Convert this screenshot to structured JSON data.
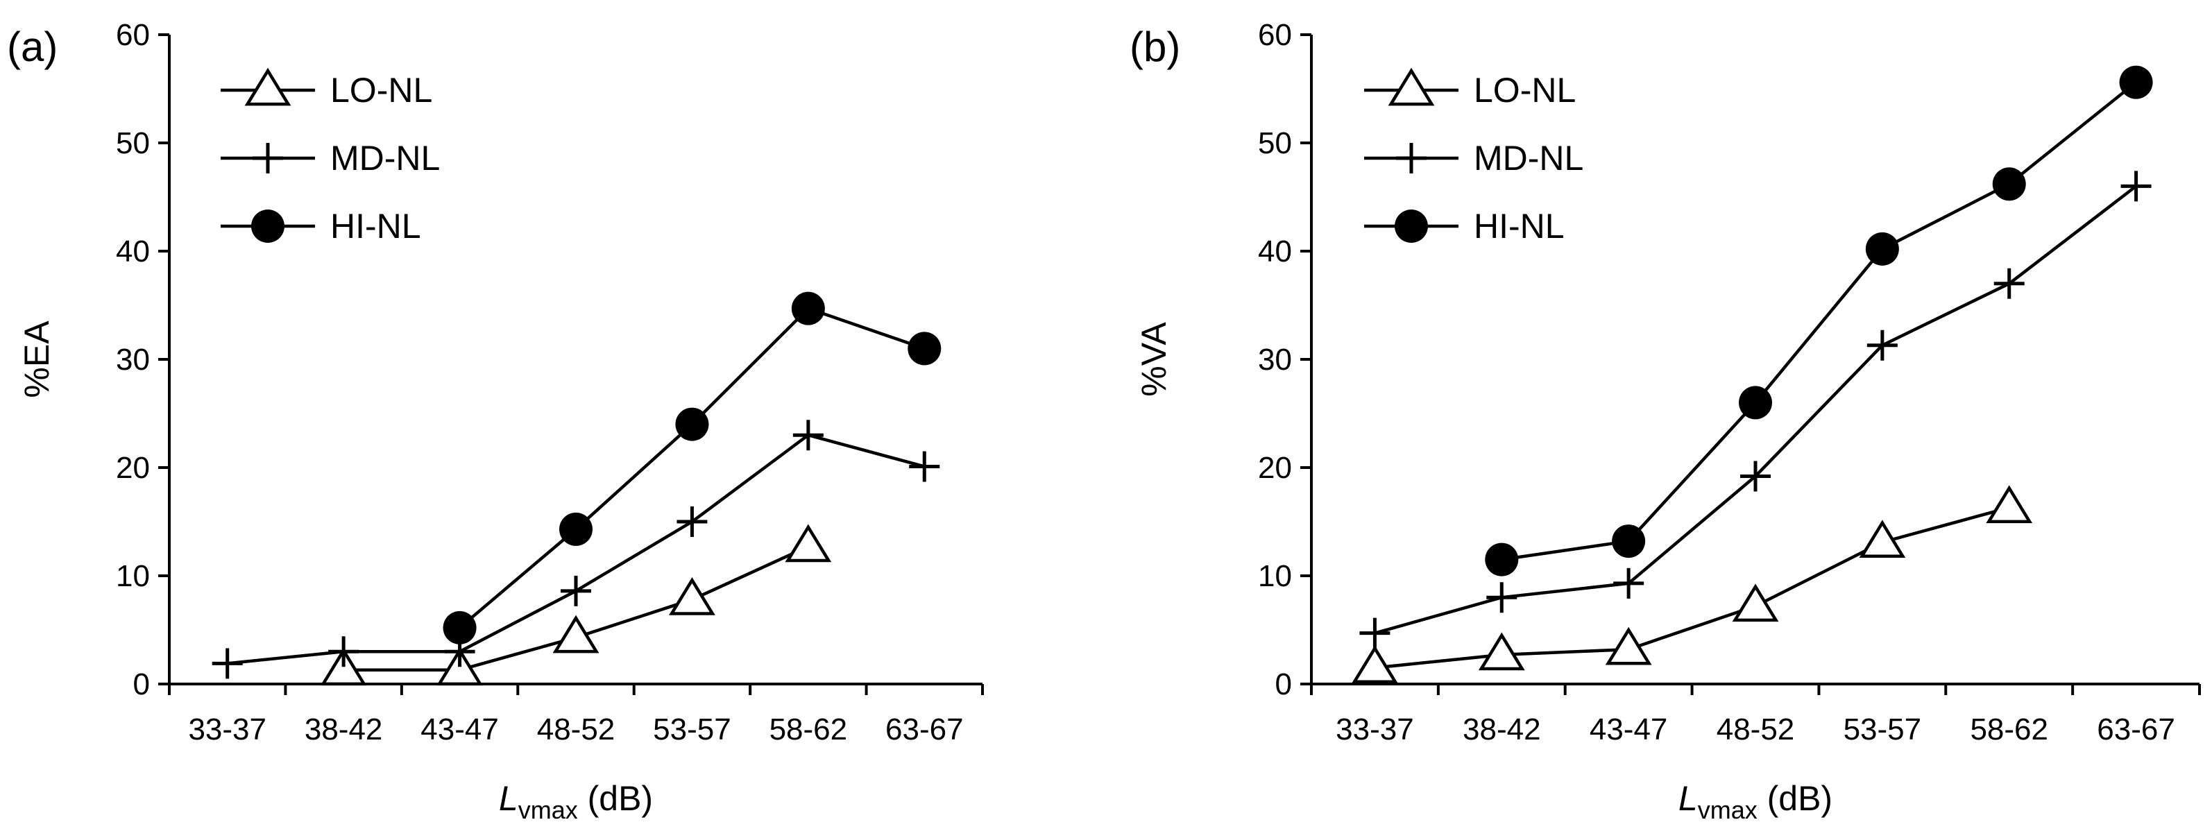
{
  "chart_data": [
    {
      "panel_label": "(a)",
      "type": "line",
      "categories": [
        "33-37",
        "38-42",
        "43-47",
        "48-52",
        "53-57",
        "58-62",
        "63-67"
      ],
      "xlabel": {
        "main": "L",
        "sub": "vmax",
        "suffix": " (dB)"
      },
      "ylabel": "%EA",
      "ylim": [
        0,
        60
      ],
      "yticks": [
        "0",
        "10",
        "20",
        "30",
        "40",
        "50",
        "60"
      ],
      "grid": false,
      "legend": "top-left",
      "series": [
        {
          "name": "LO-NL",
          "marker": "triangle",
          "values": [
            null,
            1.3,
            1.3,
            4.3,
            7.8,
            12.7,
            null
          ]
        },
        {
          "name": "MD-NL",
          "marker": "plus",
          "values": [
            1.9,
            3.0,
            3.0,
            8.6,
            15.0,
            23.0,
            20.1
          ]
        },
        {
          "name": "HI-NL",
          "marker": "circle",
          "values": [
            null,
            null,
            5.2,
            14.3,
            24.0,
            34.7,
            31.0
          ]
        }
      ]
    },
    {
      "panel_label": "(b)",
      "type": "line",
      "categories": [
        "33-37",
        "38-42",
        "43-47",
        "48-52",
        "53-57",
        "58-62",
        "63-67"
      ],
      "xlabel": {
        "main": "L",
        "sub": "vmax",
        "suffix": " (dB)"
      },
      "ylabel": "%VA",
      "ylim": [
        0,
        60
      ],
      "yticks": [
        "0",
        "10",
        "20",
        "30",
        "40",
        "50",
        "60"
      ],
      "grid": false,
      "legend": "top-left",
      "series": [
        {
          "name": "LO-NL",
          "marker": "triangle",
          "values": [
            1.5,
            2.7,
            3.2,
            7.2,
            13.1,
            16.3,
            null
          ]
        },
        {
          "name": "MD-NL",
          "marker": "plus",
          "values": [
            4.7,
            8.0,
            9.3,
            19.2,
            31.3,
            37.0,
            46.0
          ]
        },
        {
          "name": "HI-NL",
          "marker": "circle",
          "values": [
            null,
            11.5,
            13.2,
            26.0,
            40.2,
            46.2,
            55.6
          ]
        }
      ]
    }
  ]
}
